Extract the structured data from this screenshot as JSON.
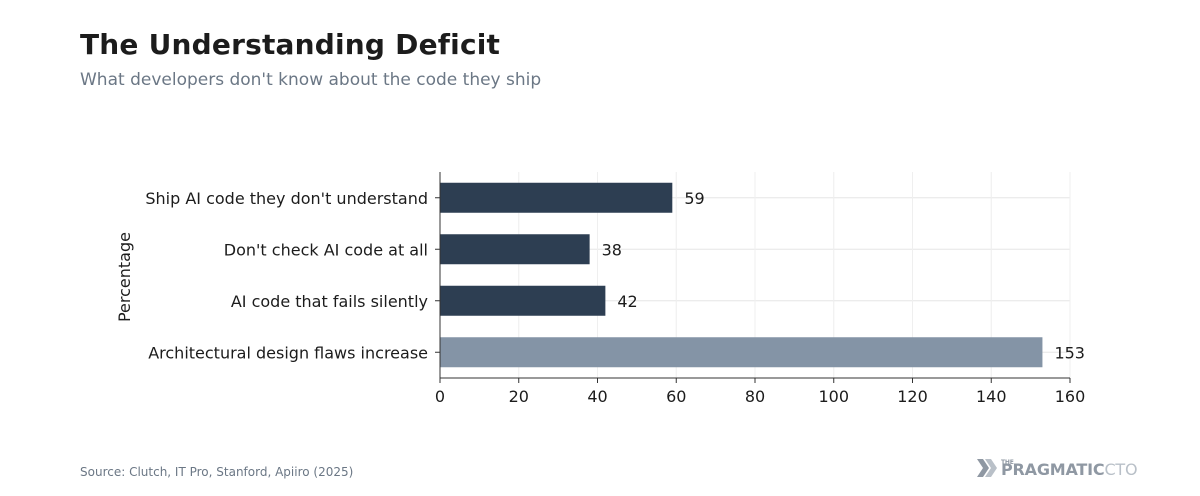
{
  "header": {
    "title": "The Understanding Deficit",
    "subtitle": "What developers don't know about the code they ship"
  },
  "footer": {
    "source": "Source: Clutch, IT Pro, Stanford, Apiiro (2025)",
    "brand_prefix": "THE",
    "brand_main": "PRAGMATIC",
    "brand_suffix": "CTO"
  },
  "colors": {
    "primary_bar": "#2d3e52",
    "highlight_bar": "#8494a6",
    "grid": "#e6e6e6",
    "axis": "#333333",
    "text": "#1c1c1c"
  },
  "chart_data": {
    "type": "bar",
    "orientation": "horizontal",
    "categories": [
      "Ship AI code they don't understand",
      "Don't check AI code at all",
      "AI code that fails silently",
      "Architectural design flaws increase"
    ],
    "values": [
      59,
      38,
      42,
      153
    ],
    "highlight": [
      false,
      false,
      false,
      true
    ],
    "xlabel": "",
    "ylabel": "Percentage",
    "xlim": [
      0,
      160
    ],
    "xticks": [
      0,
      20,
      40,
      60,
      80,
      100,
      120,
      140,
      160
    ],
    "grid": true,
    "data_labels": true
  }
}
